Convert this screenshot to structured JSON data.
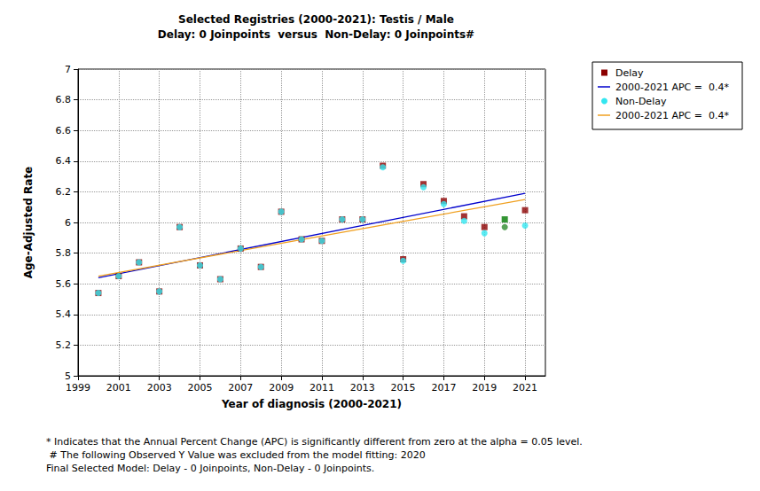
{
  "chart_data": {
    "type": "scatter",
    "title": "Selected Registries (2000-2021): Testis / Male",
    "subtitle": "Delay: 0 Joinpoints  versus  Non-Delay: 0 Joinpoints#",
    "x_label": "Year of diagnosis (2000-2021)",
    "y_label": "Age-Adjusted Rate",
    "annotations": [
      "* Indicates that the Annual Percent Change (APC) is significantly different from zero at the alpha = 0.05 level.",
      " # The following Observed Y Value was excluded from the model fitting: 2020",
      "Final Selected Model: Delay - 0 Joinpoints, Non-Delay - 0 Joinpoints."
    ],
    "xlim": [
      1999,
      2022
    ],
    "xticks": [
      1999,
      2001,
      2003,
      2005,
      2007,
      2009,
      2011,
      2013,
      2015,
      2017,
      2019,
      2021
    ],
    "ylim": [
      5,
      7
    ],
    "yticks": [
      5,
      5.2,
      5.4,
      5.6,
      5.8,
      6,
      6.2,
      6.4,
      6.6,
      6.8,
      7
    ],
    "grid": true,
    "legend": "right",
    "series": [
      {
        "name": "Delay",
        "type": "scatter",
        "marker": "square",
        "color": "#8b0000",
        "x": [
          2000,
          2001,
          2002,
          2003,
          2004,
          2005,
          2006,
          2007,
          2008,
          2009,
          2010,
          2011,
          2012,
          2013,
          2014,
          2015,
          2016,
          2017,
          2018,
          2019,
          2020,
          2021
        ],
        "values": [
          5.54,
          5.65,
          5.74,
          5.55,
          5.97,
          5.72,
          5.63,
          5.83,
          5.71,
          6.07,
          5.89,
          5.88,
          6.02,
          6.02,
          6.37,
          5.76,
          6.25,
          6.14,
          6.04,
          5.97,
          6.02,
          6.08
        ],
        "colors": [
          "#8b0000",
          "#8b0000",
          "#8b0000",
          "#8b0000",
          "#8b0000",
          "#8b0000",
          "#8b0000",
          "#8b0000",
          "#8b0000",
          "#8b0000",
          "#8b0000",
          "#8b0000",
          "#8b0000",
          "#8b0000",
          "#8b0000",
          "#8b0000",
          "#8b0000",
          "#8b0000",
          "#8b0000",
          "#8b0000",
          "#007a00",
          "#8b0000"
        ]
      },
      {
        "name": "2000-2021 APC =  0.4*",
        "type": "line",
        "line_style": "solid",
        "color": "#0000cc",
        "x": [
          2000,
          2021
        ],
        "values": [
          5.64,
          6.19
        ]
      },
      {
        "name": "Non-Delay",
        "type": "scatter",
        "marker": "circle",
        "color": "#33e6f0",
        "x": [
          2000,
          2001,
          2002,
          2003,
          2004,
          2005,
          2006,
          2007,
          2008,
          2009,
          2010,
          2011,
          2012,
          2013,
          2014,
          2015,
          2016,
          2017,
          2018,
          2019,
          2020,
          2021
        ],
        "values": [
          5.54,
          5.65,
          5.74,
          5.55,
          5.97,
          5.72,
          5.63,
          5.83,
          5.71,
          6.07,
          5.89,
          5.88,
          6.02,
          6.02,
          6.36,
          5.75,
          6.23,
          6.12,
          6.01,
          5.93,
          5.97,
          5.98
        ],
        "colors": [
          "#33e6f0",
          "#33e6f0",
          "#33e6f0",
          "#33e6f0",
          "#33e6f0",
          "#33e6f0",
          "#33e6f0",
          "#33e6f0",
          "#33e6f0",
          "#33e6f0",
          "#33e6f0",
          "#33e6f0",
          "#33e6f0",
          "#33e6f0",
          "#33e6f0",
          "#33e6f0",
          "#33e6f0",
          "#33e6f0",
          "#33e6f0",
          "#33e6f0",
          "#2e8b2e",
          "#33e6f0"
        ]
      },
      {
        "name": "2000-2021 APC =  0.4*",
        "type": "line",
        "line_style": "solid",
        "color": "#f0a020",
        "x": [
          2000,
          2021
        ],
        "values": [
          5.65,
          6.15
        ]
      }
    ]
  }
}
